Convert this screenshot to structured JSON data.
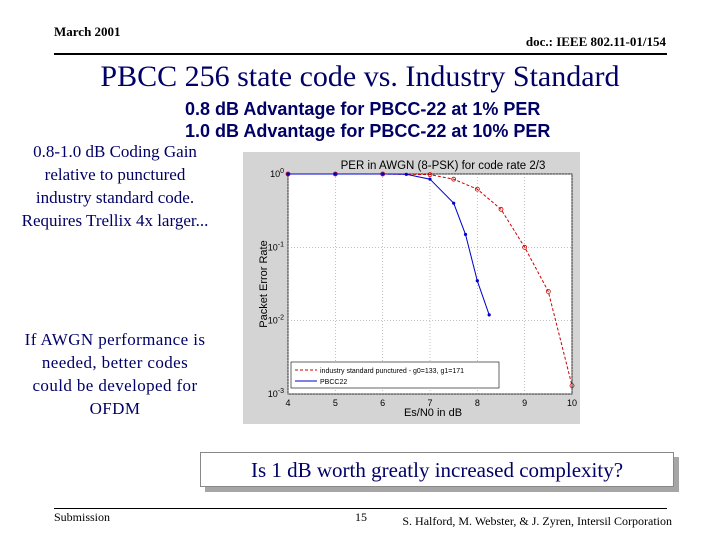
{
  "header": {
    "date": "March 2001",
    "doc_id": "doc.: IEEE 802.11-01/154"
  },
  "title": "PBCC 256 state code vs. Industry Standard",
  "advantages": [
    "0.8 dB Advantage for PBCC-22 at 1% PER",
    "1.0 dB Advantage for PBCC-22 at 10% PER"
  ],
  "left_notes": {
    "coding_gain": "0.8-1.0 dB Coding Gain relative to punctured industry standard code. Requires Trellix 4x larger...",
    "awgn": "If AWGN performance is needed, better codes could be developed for OFDM"
  },
  "question": "Is 1 dB worth greatly increased complexity?",
  "footer": {
    "submission": "Submission",
    "page": "15",
    "authors": "S. Halford, M. Webster, & J. Zyren, Intersil Corporation"
  },
  "colors": {
    "title": "#000066",
    "industry_series": "#cc0000",
    "pbcc_series": "#0000cc",
    "chart_bg": "#d4d4d4"
  },
  "chart_data": {
    "type": "line",
    "title": "PER in AWGN (8-PSK) for code rate 2/3",
    "xlabel": "Es/N0 in dB",
    "ylabel": "Packet Error Rate",
    "xlim": [
      4,
      10
    ],
    "ylim": [
      0.001,
      1
    ],
    "y_scale": "log",
    "x_ticks": [
      4,
      5,
      6,
      7,
      8,
      9,
      10
    ],
    "x_tick_labels": [
      "4",
      "5",
      "6",
      "7",
      "8",
      "9",
      "10"
    ],
    "y_ticks": [
      0.001,
      0.01,
      0.1,
      1
    ],
    "y_tick_labels": [
      "10^-3",
      "10^-2",
      "10^-1",
      "10^0"
    ],
    "grid": true,
    "legend_position": "bottom-left",
    "series": [
      {
        "name": "industry standard punctured - g0=133, g1=171",
        "color": "#cc0000",
        "style": "dashed",
        "x": [
          4,
          5,
          6,
          7,
          7.5,
          8,
          8.5,
          9,
          9.5,
          10
        ],
        "y": [
          1,
          1,
          1,
          0.98,
          0.85,
          0.62,
          0.33,
          0.1,
          0.025,
          0.0013
        ]
      },
      {
        "name": "PBCC22",
        "color": "#0000cc",
        "style": "solid",
        "x": [
          4,
          5,
          6,
          6.5,
          7,
          7.5,
          7.75,
          8,
          8.25
        ],
        "y": [
          1,
          1,
          1,
          0.99,
          0.85,
          0.4,
          0.15,
          0.035,
          0.012
        ]
      }
    ]
  }
}
